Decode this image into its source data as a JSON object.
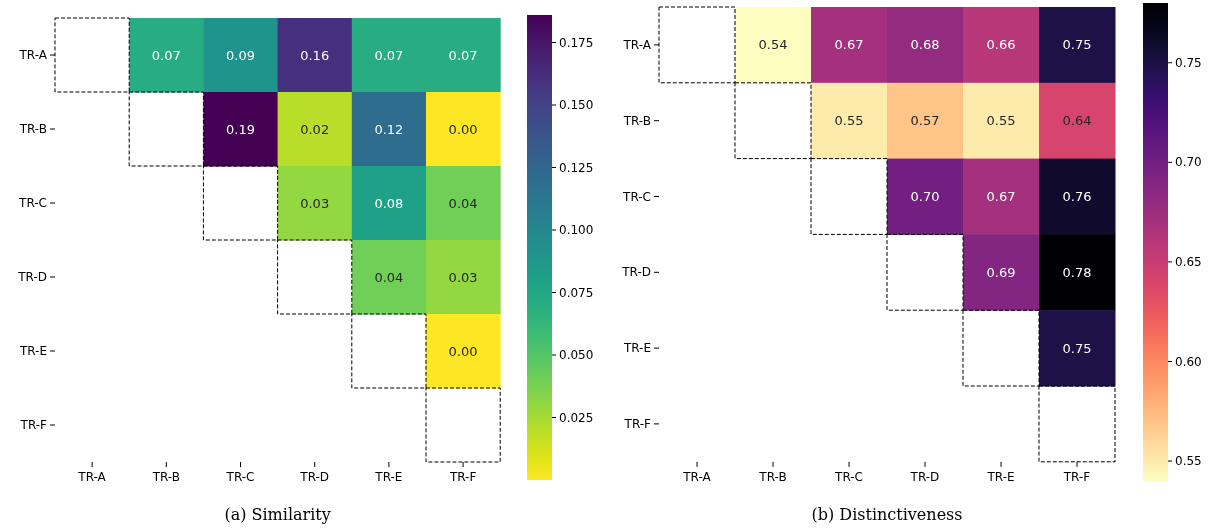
{
  "chart_data": [
    {
      "type": "heatmap",
      "title": "(a) Similarity",
      "categories": [
        "TR-A",
        "TR-B",
        "TR-C",
        "TR-D",
        "TR-E",
        "TR-F"
      ],
      "y_categories": [
        "TR-A",
        "TR-B",
        "TR-C",
        "TR-D",
        "TR-E",
        "TR-F"
      ],
      "cells": [
        [
          null,
          0.07,
          0.09,
          0.16,
          0.07,
          0.07
        ],
        [
          null,
          null,
          0.19,
          0.02,
          0.12,
          0.0
        ],
        [
          null,
          null,
          null,
          0.03,
          0.08,
          0.04
        ],
        [
          null,
          null,
          null,
          null,
          0.04,
          0.03
        ],
        [
          null,
          null,
          null,
          null,
          null,
          0.0
        ],
        [
          null,
          null,
          null,
          null,
          null,
          null
        ]
      ],
      "cell_labels": [
        [
          null,
          "0.07",
          "0.09",
          "0.16",
          "0.07",
          "0.07"
        ],
        [
          null,
          null,
          "0.19",
          "0.02",
          "0.12",
          "0.00"
        ],
        [
          null,
          null,
          null,
          "0.03",
          "0.08",
          "0.04"
        ],
        [
          null,
          null,
          null,
          null,
          "0.04",
          "0.03"
        ],
        [
          null,
          null,
          null,
          null,
          null,
          "0.00"
        ],
        [
          null,
          null,
          null,
          null,
          null,
          null
        ]
      ],
      "clim": [
        0,
        0.186
      ],
      "cticks": [
        {
          "value": 0.025,
          "label": "0.025"
        },
        {
          "value": 0.05,
          "label": "0.050"
        },
        {
          "value": 0.075,
          "label": "0.075"
        },
        {
          "value": 0.1,
          "label": "0.100"
        },
        {
          "value": 0.125,
          "label": "0.125"
        },
        {
          "value": 0.15,
          "label": "0.150"
        },
        {
          "value": 0.175,
          "label": "0.175"
        }
      ]
    },
    {
      "type": "heatmap",
      "title": "(b) Distinctiveness",
      "categories": [
        "TR-A",
        "TR-B",
        "TR-C",
        "TR-D",
        "TR-E",
        "TR-F"
      ],
      "y_categories": [
        "TR-A",
        "TR-B",
        "TR-C",
        "TR-D",
        "TR-E",
        "TR-F"
      ],
      "cells": [
        [
          null,
          0.54,
          0.67,
          0.68,
          0.66,
          0.75
        ],
        [
          null,
          null,
          0.55,
          0.57,
          0.55,
          0.64
        ],
        [
          null,
          null,
          null,
          0.7,
          0.67,
          0.76
        ],
        [
          null,
          null,
          null,
          null,
          0.69,
          0.78
        ],
        [
          null,
          null,
          null,
          null,
          null,
          0.75
        ],
        [
          null,
          null,
          null,
          null,
          null,
          null
        ]
      ],
      "cell_labels": [
        [
          null,
          "0.54",
          "0.67",
          "0.68",
          "0.66",
          "0.75"
        ],
        [
          null,
          null,
          "0.55",
          "0.57",
          "0.55",
          "0.64"
        ],
        [
          null,
          null,
          null,
          "0.70",
          "0.67",
          "0.76"
        ],
        [
          null,
          null,
          null,
          null,
          "0.69",
          "0.78"
        ],
        [
          null,
          null,
          null,
          null,
          null,
          "0.75"
        ],
        [
          null,
          null,
          null,
          null,
          null,
          null
        ]
      ],
      "clim": [
        0.54,
        0.78
      ],
      "cticks": [
        {
          "value": 0.55,
          "label": "0.55"
        },
        {
          "value": 0.6,
          "label": "0.60"
        },
        {
          "value": 0.65,
          "label": "0.65"
        },
        {
          "value": 0.7,
          "label": "0.70"
        },
        {
          "value": 0.75,
          "label": "0.75"
        }
      ]
    }
  ]
}
